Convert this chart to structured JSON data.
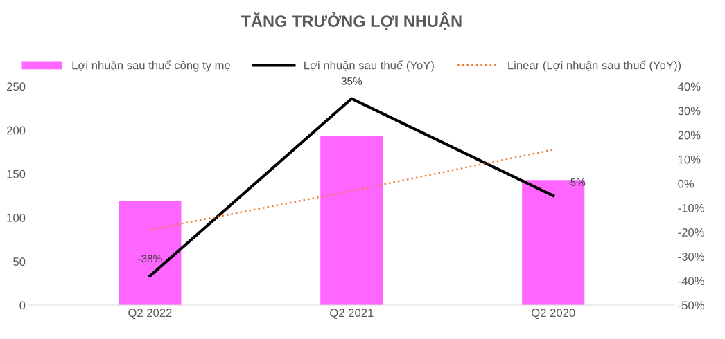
{
  "chart_data": {
    "type": "bar",
    "title": "TĂNG TRƯỞNG LỢI NHUẬN",
    "categories": [
      "Q2 2022",
      "Q2 2021",
      "Q2 2020"
    ],
    "series": [
      {
        "name": "Lợi nhuận sau thuế công ty mẹ",
        "color": "#ff66ff",
        "values": [
          119,
          193,
          143
        ]
      },
      {
        "name": "Lợi nhuận sau thuế (YoY)",
        "type": "line",
        "axis": "y2",
        "color": "#000000",
        "line_style": "solid",
        "values": [
          -38,
          35,
          -5
        ],
        "value_labels": [
          "-38%",
          "35%",
          "-5%"
        ]
      },
      {
        "name": "Linear (Lợi nhuận sau thuế (YoY))",
        "type": "line",
        "axis": "y2",
        "color": "#ed7d31",
        "line_style": "dotted",
        "values": [
          -19,
          -3,
          14
        ]
      }
    ],
    "ylim": [
      0,
      250
    ],
    "yticks": [
      0,
      50,
      100,
      150,
      200,
      250
    ],
    "y2lim": [
      -50,
      40
    ],
    "y2ticks": [
      {
        "value": -50,
        "label": "-50%"
      },
      {
        "value": -40,
        "label": "-40%"
      },
      {
        "value": -30,
        "label": "-30%"
      },
      {
        "value": -20,
        "label": "-20%"
      },
      {
        "value": -10,
        "label": "-10%"
      },
      {
        "value": 0,
        "label": "0%"
      },
      {
        "value": 10,
        "label": "10%"
      },
      {
        "value": 20,
        "label": "20%"
      },
      {
        "value": 30,
        "label": "30%"
      },
      {
        "value": 40,
        "label": "40%"
      }
    ],
    "grid": false,
    "legend": "top",
    "marker": "none"
  }
}
